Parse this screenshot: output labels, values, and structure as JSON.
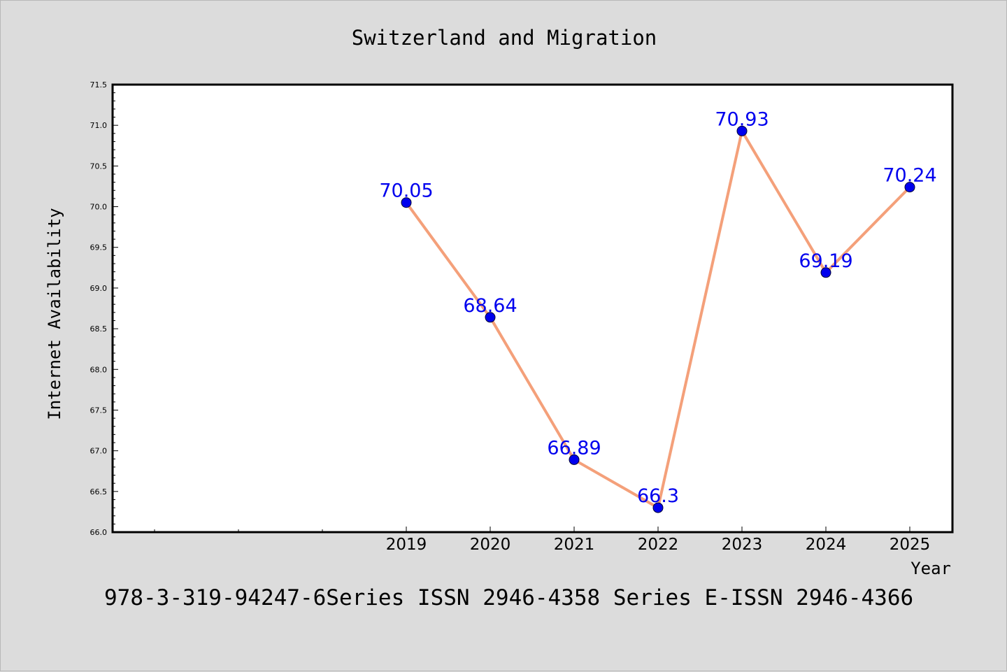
{
  "chart_data": {
    "type": "line",
    "title": "Switzerland and Migration",
    "xlabel": "Year",
    "ylabel": "Internet Availability",
    "x": [
      "2019",
      "2020",
      "2021",
      "2022",
      "2023",
      "2024",
      "2025"
    ],
    "series": [
      {
        "values": [
          70.05,
          68.64,
          66.89,
          66.3,
          70.93,
          69.19,
          70.24
        ]
      }
    ],
    "data_labels": [
      "70.05",
      "68.64",
      "66.89",
      "66.3",
      "70.93",
      "69.19",
      "70.24"
    ],
    "ylim": [
      66.0,
      71.5
    ],
    "yticks": [
      "66.0",
      "66.5",
      "67.0",
      "67.5",
      "68.0",
      "68.5",
      "69.0",
      "69.5",
      "70.0",
      "70.5",
      "71.0",
      "71.5"
    ],
    "grid": false,
    "line_color": "#f4a07a",
    "marker_color": "#0000ee",
    "label_color": "#0000ee"
  },
  "caption": "978-3-319-94247-6Series ISSN 2946-4358 Series E-ISSN 2946-4366"
}
